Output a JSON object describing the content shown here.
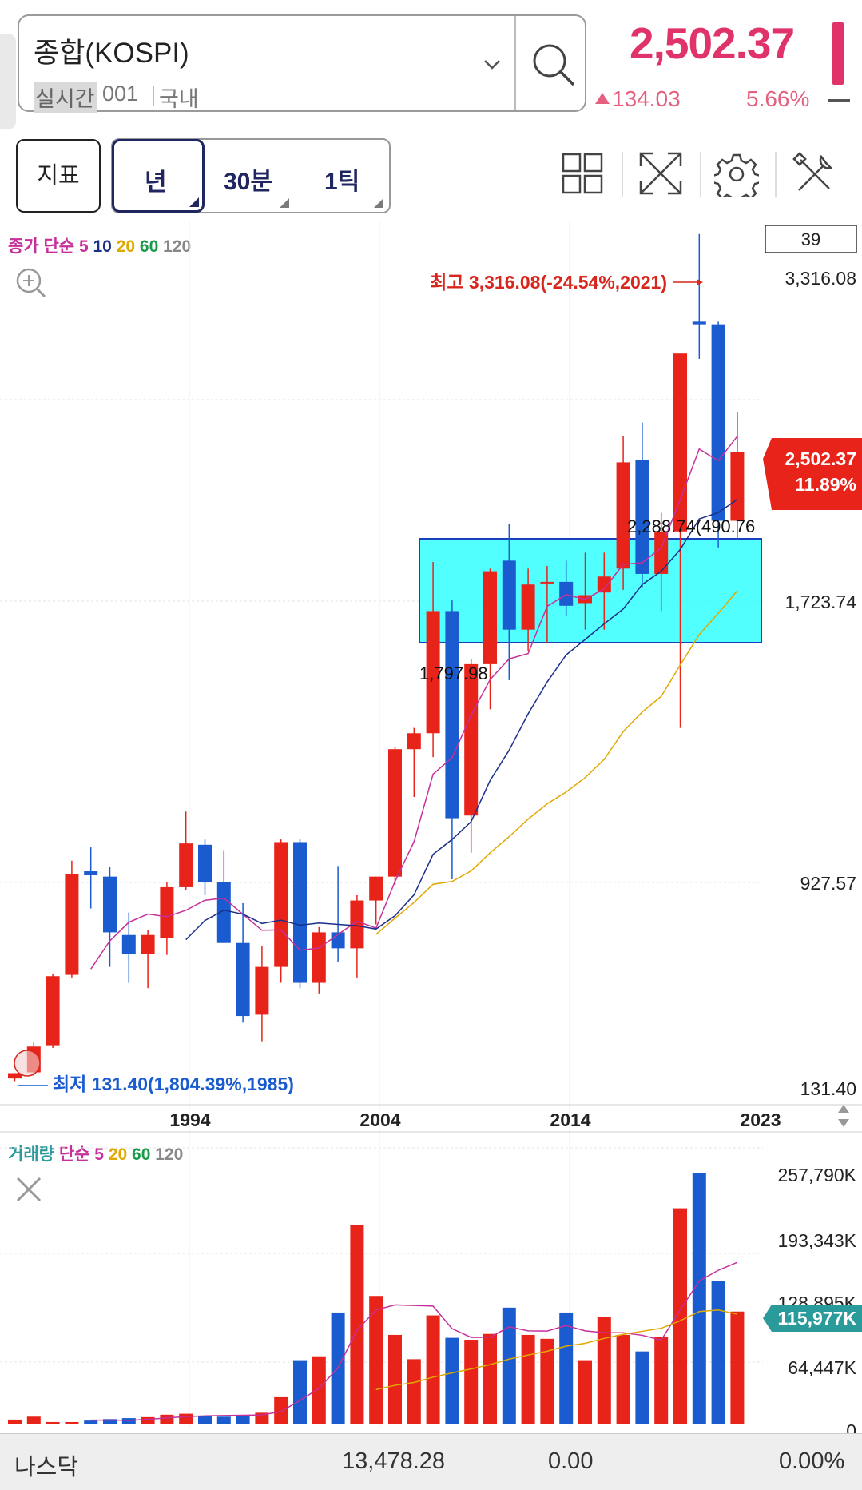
{
  "header": {
    "index_name": "종합(KOSPI)",
    "live_tag": "실시간",
    "code": "001",
    "market": "국내",
    "price": "2,502.37",
    "change": "134.03",
    "change_rate": "5.66%",
    "up_color": "#e0336a"
  },
  "toolbar": {
    "indicator_label": "지표",
    "periods": [
      "년",
      "30분",
      "1틱"
    ],
    "selected_period": "년",
    "icons": [
      "grid-icon",
      "expand-icon",
      "gear-icon",
      "tools-icon"
    ]
  },
  "price_chart": {
    "legend": {
      "prefix": "종가 단순",
      "periods": [
        "5",
        "10",
        "20",
        "60",
        "120"
      ]
    },
    "visible_count": "39",
    "y_labels": [
      "3,316.08",
      "1,723.74",
      "927.57",
      "131.40"
    ],
    "x_labels": [
      "1994",
      "2004",
      "2014",
      "2023"
    ],
    "high_label": "최고 3,316.08(-24.54%,2021)",
    "low_label": "최저 131.40(1,804.39%,1985)",
    "current_price": "2,502.37",
    "current_rate": "11.89%",
    "box_low_label": "1,797.98",
    "box_high_label": "2,288.74(490.76",
    "colors": {
      "up": "#e8231a",
      "down": "#1a5ccf",
      "box": "#33ffff"
    }
  },
  "volume_chart": {
    "legend": {
      "prefix": "거래량 단순",
      "periods": [
        "5",
        "20",
        "60",
        "120"
      ]
    },
    "y_labels": [
      "257,790K",
      "193,343K",
      "128,895K",
      "64,447K",
      "0"
    ],
    "current_volume": "115,977K"
  },
  "chart_data": [
    {
      "type": "candlestick",
      "x_labels": [
        "1994",
        "2004",
        "2014",
        "2023"
      ],
      "years": [
        1985,
        1986,
        1987,
        1988,
        1989,
        1990,
        1991,
        1992,
        1993,
        1994,
        1995,
        1996,
        1997,
        1998,
        1999,
        2000,
        2001,
        2002,
        2003,
        2004,
        2005,
        2006,
        2007,
        2008,
        2009,
        2010,
        2011,
        2012,
        2013,
        2014,
        2015,
        2016,
        2017,
        2018,
        2019,
        2020,
        2021,
        2022,
        2023
      ],
      "open": [
        140,
        163,
        265,
        530,
        920,
        900,
        680,
        610,
        670,
        860,
        1020,
        880,
        650,
        380,
        560,
        1030,
        500,
        690,
        630,
        810,
        900,
        1380,
        1440,
        1900,
        1130,
        1700,
        2090,
        1830,
        2010,
        2010,
        1930,
        1970,
        2060,
        2470,
        2040,
        2200,
        2990,
        2980,
        2240
      ],
      "high": [
        150,
        275,
        535,
        960,
        1010,
        935,
        765,
        700,
        880,
        1145,
        1040,
        1000,
        800,
        640,
        1040,
        1040,
        710,
        940,
        830,
        900,
        1390,
        1460,
        2085,
        1940,
        1720,
        2060,
        2230,
        2060,
        2070,
        2090,
        2120,
        2120,
        2560,
        2610,
        2270,
        2850,
        3320,
        2990,
        2650
      ],
      "low": [
        130,
        150,
        255,
        520,
        780,
        560,
        500,
        480,
        605,
        850,
        830,
        650,
        350,
        280,
        500,
        480,
        460,
        580,
        520,
        720,
        870,
        1200,
        1350,
        890,
        990,
        1530,
        1640,
        1750,
        1780,
        1880,
        1830,
        1830,
        1980,
        1990,
        1900,
        1460,
        2850,
        2140,
        2170
      ],
      "close": [
        160,
        260,
        525,
        910,
        905,
        690,
        610,
        680,
        860,
        1025,
        880,
        650,
        375,
        560,
        1030,
        500,
        690,
        630,
        810,
        900,
        1380,
        1440,
        1900,
        1120,
        1700,
        2050,
        1830,
        2000,
        2010,
        1920,
        1960,
        2030,
        2460,
        2040,
        2200,
        2870,
        2980,
        2240,
        2500
      ],
      "ylim": [
        131.4,
        3316.08
      ]
    },
    {
      "type": "bar",
      "name": "거래량",
      "years": [
        1985,
        1986,
        1987,
        1988,
        1989,
        1990,
        1991,
        1992,
        1993,
        1994,
        1995,
        1996,
        1997,
        1998,
        1999,
        2000,
        2001,
        2002,
        2003,
        2004,
        2005,
        2006,
        2007,
        2008,
        2009,
        2010,
        2011,
        2012,
        2013,
        2014,
        2015,
        2016,
        2017,
        2018,
        2019,
        2020,
        2021,
        2022,
        2023
      ],
      "volume_k": [
        5000,
        8000,
        2500,
        2500,
        4000,
        5500,
        6500,
        7500,
        10000,
        11000,
        9000,
        8000,
        9000,
        12000,
        28000,
        66000,
        70000,
        115000,
        205000,
        132000,
        92000,
        67000,
        112000,
        89000,
        87000,
        93000,
        120000,
        92000,
        88000,
        115000,
        66000,
        110000,
        92000,
        75000,
        90000,
        222000,
        257790,
        147000,
        115977
      ],
      "ylim": [
        0,
        257790
      ]
    }
  ]
}
